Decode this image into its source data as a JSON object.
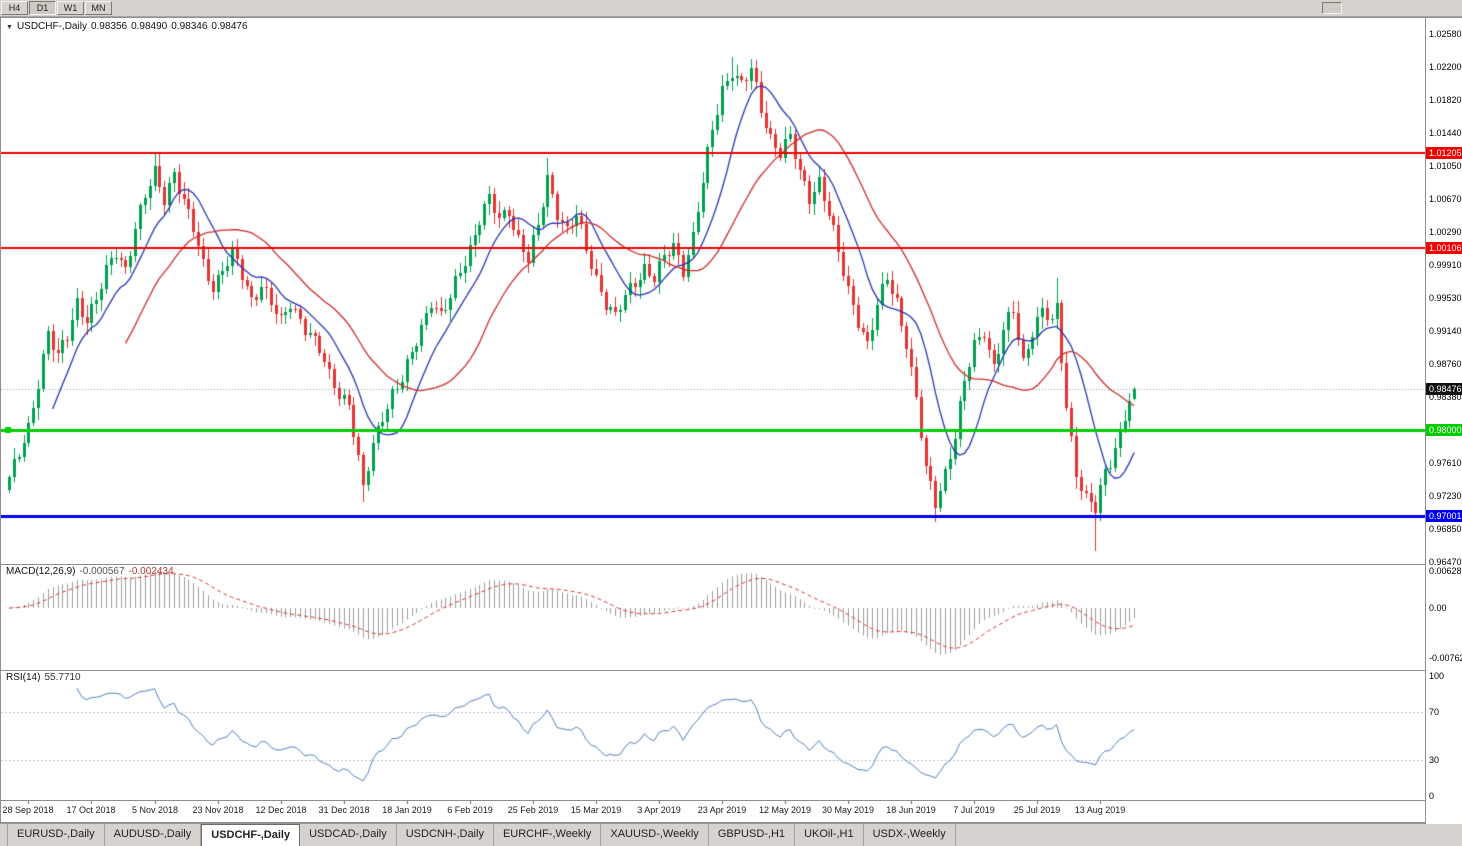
{
  "toolbar": {
    "buttons": [
      "H4",
      "D1",
      "W1",
      "MN"
    ],
    "active": "D1"
  },
  "legend": {
    "symbol": "USDCHF-,Daily",
    "open": "0.98356",
    "high": "0.98490",
    "low": "0.98346",
    "close": "0.98476"
  },
  "price_axis": [
    "1.02580",
    "1.02200",
    "1.01820",
    "1.01440",
    "1.01050",
    "1.00670",
    "1.00290",
    "0.99910",
    "0.99530",
    "0.99140",
    "0.98760",
    "0.98380",
    "0.98000",
    "0.97610",
    "0.97230",
    "0.96850",
    "0.96470"
  ],
  "levels": [
    {
      "label": "1.01205",
      "value": 1.01205,
      "color": "#f20000",
      "width": 2,
      "handle": false
    },
    {
      "label": "1.00106",
      "value": 1.00106,
      "color": "#f20000",
      "width": 2,
      "handle": false
    },
    {
      "label": "0.98000",
      "value": 0.98,
      "color": "#00cc00",
      "width": 3,
      "handle": true
    },
    {
      "label": "0.97001",
      "value": 0.97001,
      "color": "#0000f0",
      "width": 3,
      "handle": false
    }
  ],
  "current_price": {
    "label": "0.98476",
    "value": 0.98476
  },
  "macd": {
    "label": "MACD(12,26,9)",
    "value": "-0.000567",
    "signal": "-0.002434",
    "axis": [
      "0.00628",
      "0.00",
      "-0.00762"
    ],
    "fast": 12,
    "slow": 26,
    "smoothing": 9
  },
  "rsi": {
    "label": "RSI(14)",
    "value": "55.7710",
    "axis": [
      "100",
      "70",
      "30",
      "0"
    ],
    "levels": [
      70,
      30
    ],
    "period": 14
  },
  "date_axis": [
    {
      "label": "28 Sep 2018",
      "bar": 4
    },
    {
      "label": "17 Oct 2018",
      "bar": 17
    },
    {
      "label": "5 Nov 2018",
      "bar": 30
    },
    {
      "label": "23 Nov 2018",
      "bar": 43
    },
    {
      "label": "12 Dec 2018",
      "bar": 56
    },
    {
      "label": "31 Dec 2018",
      "bar": 69
    },
    {
      "label": "18 Jan 2019",
      "bar": 82
    },
    {
      "label": "6 Feb 2019",
      "bar": 95
    },
    {
      "label": "25 Feb 2019",
      "bar": 108
    },
    {
      "label": "15 Mar 2019",
      "bar": 121
    },
    {
      "label": "3 Apr 2019",
      "bar": 134
    },
    {
      "label": "23 Apr 2019",
      "bar": 147
    },
    {
      "label": "12 May 2019",
      "bar": 160
    },
    {
      "label": "30 May 2019",
      "bar": 173
    },
    {
      "label": "18 Jun 2019",
      "bar": 186
    },
    {
      "label": "7 Jul 2019",
      "bar": 199
    },
    {
      "label": "25 Jul 2019",
      "bar": 212
    },
    {
      "label": "13 Aug 2019",
      "bar": 225
    }
  ],
  "tabs": [
    "EURUSD-,Daily",
    "AUDUSD-,Daily",
    "USDCHF-,Daily",
    "USDCAD-,Daily",
    "USDCNH-,Daily",
    "EURCHF-,Weekly",
    "XAUUSD-,Weekly",
    "GBPUSD-,H1",
    "UKOil-,H1",
    "USDX-,Weekly"
  ],
  "active_tab": "USDCHF-,Daily",
  "colors": {
    "up": "#00a050",
    "down": "#e23535",
    "ma_fast": "#2736b3",
    "ma_slow": "#cf2d2d",
    "macd_hist": "#9e9e9e",
    "macd_signal": "#d23a3a",
    "rsi_line": "#4f81bd",
    "rsi_levels": "#c4c4d4",
    "current_line": "#9a9a9a",
    "current_tag": "#111111"
  },
  "chart_data": {
    "type": "candlestick",
    "symbol": "USDCHF-",
    "timeframe": "Daily",
    "bars": 233,
    "ylim": [
      0.9647,
      1.0258
    ],
    "last_ohlc": [
      0.98356,
      0.9849,
      0.98346,
      0.98476
    ],
    "ma_fast_period": 10,
    "ma_slow_period": 25,
    "close_anchors": [
      [
        0,
        0.9745
      ],
      [
        2,
        0.9768
      ],
      [
        4,
        0.98
      ],
      [
        6,
        0.9858
      ],
      [
        8,
        0.9915
      ],
      [
        10,
        0.9882
      ],
      [
        12,
        0.9905
      ],
      [
        14,
        0.9948
      ],
      [
        16,
        0.9932
      ],
      [
        18,
        0.995
      ],
      [
        20,
        0.998
      ],
      [
        22,
        1.0005
      ],
      [
        24,
        0.9988
      ],
      [
        26,
        1.0035
      ],
      [
        28,
        1.0068
      ],
      [
        30,
        1.0095
      ],
      [
        32,
        1.007
      ],
      [
        34,
        1.01
      ],
      [
        36,
        1.0062
      ],
      [
        38,
        1.003
      ],
      [
        40,
        0.9992
      ],
      [
        42,
        0.9968
      ],
      [
        44,
        0.9985
      ],
      [
        46,
        1.0002
      ],
      [
        48,
        0.9978
      ],
      [
        50,
        0.9952
      ],
      [
        52,
        0.997
      ],
      [
        54,
        0.9945
      ],
      [
        56,
        0.9922
      ],
      [
        58,
        0.9948
      ],
      [
        60,
        0.993
      ],
      [
        62,
        0.991
      ],
      [
        64,
        0.989
      ],
      [
        66,
        0.9862
      ],
      [
        68,
        0.9845
      ],
      [
        70,
        0.9832
      ],
      [
        72,
        0.9762
      ],
      [
        73,
        0.9728
      ],
      [
        75,
        0.9782
      ],
      [
        77,
        0.982
      ],
      [
        79,
        0.9842
      ],
      [
        81,
        0.9856
      ],
      [
        83,
        0.9886
      ],
      [
        85,
        0.992
      ],
      [
        87,
        0.9952
      ],
      [
        89,
        0.993
      ],
      [
        91,
        0.995
      ],
      [
        93,
        0.9985
      ],
      [
        95,
        1.0012
      ],
      [
        97,
        1.0045
      ],
      [
        99,
        1.0065
      ],
      [
        101,
        1.0042
      ],
      [
        103,
        1.0056
      ],
      [
        105,
        1.0022
      ],
      [
        107,
        0.9996
      ],
      [
        109,
        1.0032
      ],
      [
        111,
        1.0092
      ],
      [
        113,
        1.0055
      ],
      [
        115,
        1.003
      ],
      [
        117,
        1.0045
      ],
      [
        119,
        1.0008
      ],
      [
        121,
        0.9978
      ],
      [
        123,
        0.9948
      ],
      [
        125,
        0.9928
      ],
      [
        127,
        0.9952
      ],
      [
        129,
        0.9972
      ],
      [
        131,
        0.999
      ],
      [
        133,
        0.9976
      ],
      [
        135,
        0.9996
      ],
      [
        137,
        1.0012
      ],
      [
        139,
        0.9988
      ],
      [
        141,
        1.0025
      ],
      [
        143,
        1.0085
      ],
      [
        145,
        1.0145
      ],
      [
        147,
        1.0195
      ],
      [
        149,
        1.0218
      ],
      [
        151,
        1.0198
      ],
      [
        153,
        1.0214
      ],
      [
        155,
        1.0172
      ],
      [
        157,
        1.014
      ],
      [
        159,
        1.0122
      ],
      [
        161,
        1.0136
      ],
      [
        163,
        1.0095
      ],
      [
        165,
        1.0072
      ],
      [
        167,
        1.009
      ],
      [
        169,
        1.0048
      ],
      [
        171,
        1.0002
      ],
      [
        173,
        0.9962
      ],
      [
        175,
        0.993
      ],
      [
        177,
        0.9898
      ],
      [
        179,
        0.994
      ],
      [
        181,
        0.9976
      ],
      [
        183,
        0.995
      ],
      [
        185,
        0.9902
      ],
      [
        187,
        0.9832
      ],
      [
        189,
        0.9752
      ],
      [
        191,
        0.9718
      ],
      [
        193,
        0.9752
      ],
      [
        195,
        0.9792
      ],
      [
        197,
        0.9852
      ],
      [
        199,
        0.9898
      ],
      [
        201,
        0.9918
      ],
      [
        203,
        0.9872
      ],
      [
        205,
        0.9912
      ],
      [
        207,
        0.9936
      ],
      [
        209,
        0.988
      ],
      [
        211,
        0.9918
      ],
      [
        213,
        0.9936
      ],
      [
        215,
        0.9922
      ],
      [
        216,
        0.9938
      ],
      [
        218,
        0.983
      ],
      [
        220,
        0.9752
      ],
      [
        222,
        0.9718
      ],
      [
        224,
        0.9706
      ],
      [
        226,
        0.9752
      ],
      [
        228,
        0.9782
      ],
      [
        230,
        0.9816
      ],
      [
        232,
        0.98476
      ]
    ],
    "wick_extremes": [
      {
        "bar": 31,
        "high": 1.0121
      },
      {
        "bar": 73,
        "low": 0.9716
      },
      {
        "bar": 111,
        "high": 1.0114
      },
      {
        "bar": 149,
        "high": 1.0231
      },
      {
        "bar": 191,
        "low": 0.9693
      },
      {
        "bar": 216,
        "high": 0.9976
      },
      {
        "bar": 224,
        "low": 0.966
      }
    ]
  }
}
